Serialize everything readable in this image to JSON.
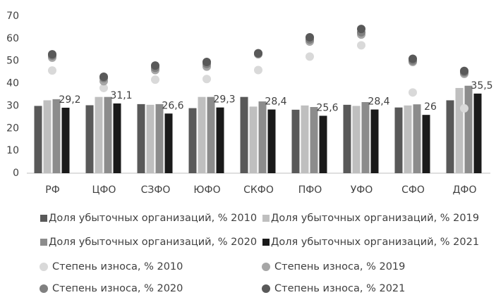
{
  "chart_data": {
    "type": "bar",
    "categories": [
      "РФ",
      "ЦФО",
      "СЗФО",
      "ЮФО",
      "СКФО",
      "ПФО",
      "УФО",
      "СФО",
      "ДФО"
    ],
    "ylim": [
      0,
      70
    ],
    "yticks": [
      0,
      10,
      20,
      30,
      40,
      50,
      60,
      70
    ],
    "grid": false,
    "series": [
      {
        "name": "Доля убыточных организаций, % 2010",
        "type": "bar",
        "color": "#595959",
        "values": [
          30,
          30.3,
          30.8,
          29,
          34,
          28.3,
          30.5,
          29.3,
          32.5
        ]
      },
      {
        "name": "Доля убыточных организаций, % 2019",
        "type": "bar",
        "color": "#bfbfbf",
        "values": [
          32.5,
          34,
          30.5,
          34,
          29.7,
          30.2,
          30,
          30.2,
          38
        ]
      },
      {
        "name": "Доля убыточных организаций, % 2020",
        "type": "bar",
        "color": "#8c8c8c",
        "values": [
          33,
          34,
          30.8,
          34,
          32,
          29.5,
          31.7,
          30.7,
          39
        ]
      },
      {
        "name": "Доля убыточных организаций, % 2021",
        "type": "bar",
        "color": "#1a1a1a",
        "values": [
          29.2,
          31.1,
          26.6,
          29.3,
          28.4,
          25.6,
          28.4,
          26,
          35.5
        ],
        "value_labels": [
          "29,2",
          "31,1",
          "26,6",
          "29,3",
          "28,4",
          "25,6",
          "28,4",
          "26",
          "35,5"
        ]
      },
      {
        "name": "Степень износа, % 2010",
        "type": "scatter",
        "color": "#d9d9d9",
        "values": [
          45.8,
          38,
          41.7,
          42,
          46,
          52,
          57,
          36,
          28.9
        ]
      },
      {
        "name": "Степень износа, % 2019",
        "type": "scatter",
        "color": "#a6a6a6",
        "values": [
          51.5,
          41,
          46,
          47.5,
          53,
          58.7,
          61.8,
          49.6,
          44.3
        ]
      },
      {
        "name": "Степень износа, % 2020",
        "type": "scatter",
        "color": "#808080",
        "values": [
          52.4,
          42.4,
          47,
          48.7,
          53.3,
          59.6,
          62.8,
          50.2,
          45
        ]
      },
      {
        "name": "Степень износа, % 2021",
        "type": "scatter",
        "color": "#595959",
        "values": [
          53,
          43,
          48,
          49.6,
          53.5,
          60.6,
          64.3,
          51,
          45.6
        ]
      }
    ]
  }
}
